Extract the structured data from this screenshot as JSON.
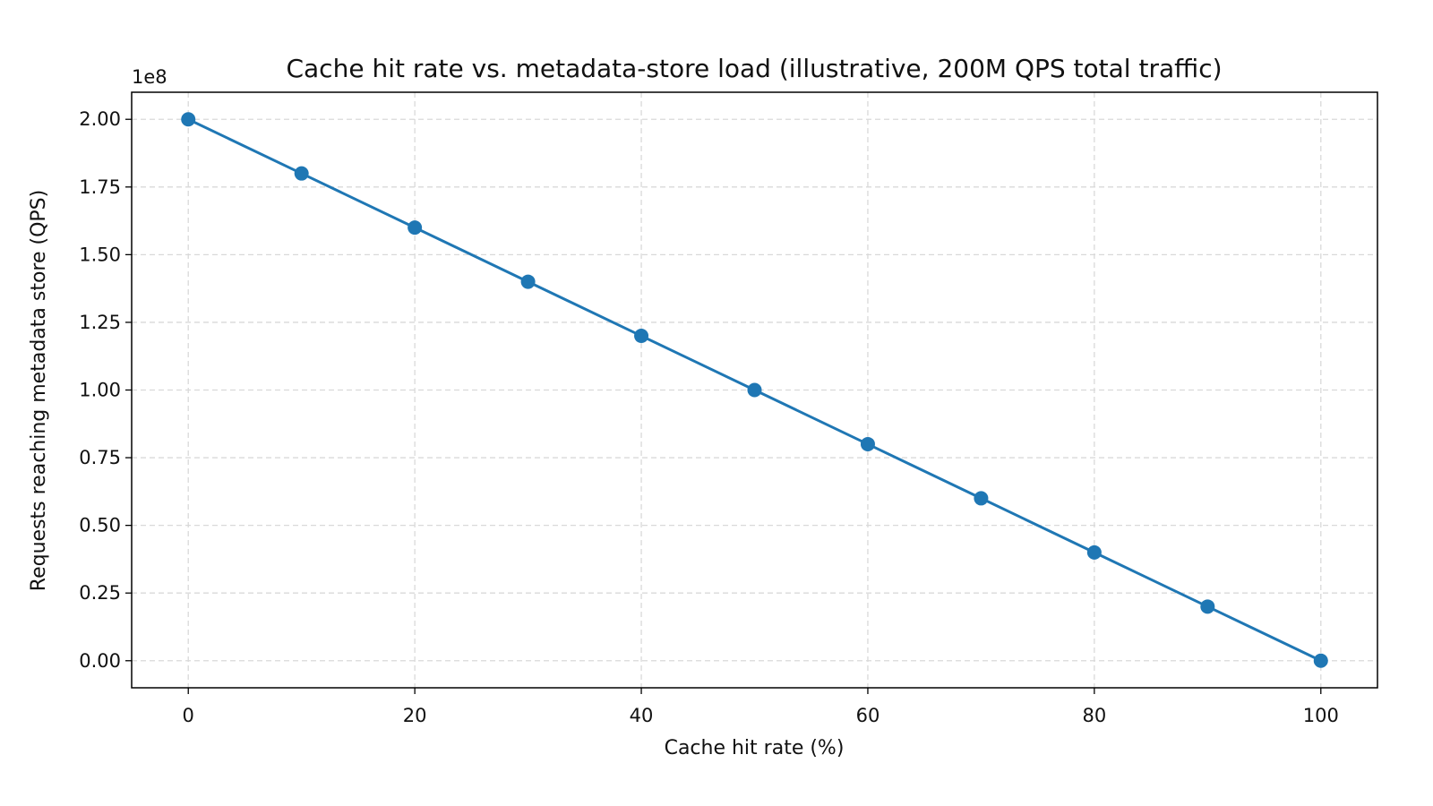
{
  "chart_data": {
    "type": "line",
    "title": "Cache hit rate vs. metadata-store load (illustrative, 200M QPS total traffic)",
    "xlabel": "Cache hit rate (%)",
    "ylabel": "Requests reaching metadata store (QPS)",
    "y_offset_label": "1e8",
    "xlim": [
      -5,
      105
    ],
    "ylim": [
      -10000000,
      210000000
    ],
    "x_ticks": [
      0,
      20,
      40,
      60,
      80,
      100
    ],
    "x_tick_labels": [
      "0",
      "20",
      "40",
      "60",
      "80",
      "100"
    ],
    "y_ticks": [
      0,
      25000000,
      50000000,
      75000000,
      100000000,
      125000000,
      150000000,
      175000000,
      200000000
    ],
    "y_tick_labels": [
      "0.00",
      "0.25",
      "0.50",
      "0.75",
      "1.00",
      "1.25",
      "1.50",
      "1.75",
      "2.00"
    ],
    "grid": true,
    "grid_style": "dashed",
    "legend": "none",
    "color": "#1f77b4",
    "marker": "circle",
    "x": [
      0,
      10,
      20,
      30,
      40,
      50,
      60,
      70,
      80,
      90,
      100
    ],
    "y": [
      200000000,
      180000000,
      160000000,
      140000000,
      120000000,
      100000000,
      80000000,
      60000000,
      40000000,
      20000000,
      0
    ]
  }
}
